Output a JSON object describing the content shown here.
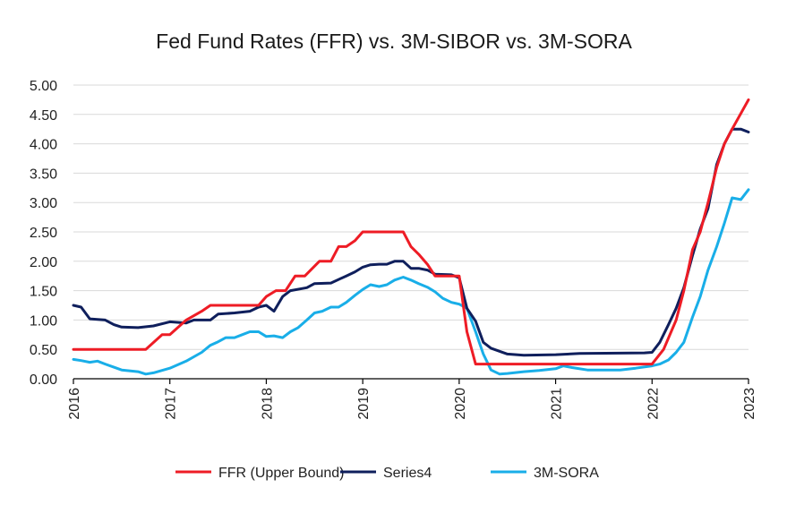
{
  "chart_data": {
    "type": "line",
    "title": "Fed Fund Rates (FFR) vs. 3M-SIBOR vs. 3M-SORA",
    "xlabel": "",
    "ylabel": "",
    "ylim": [
      0,
      5
    ],
    "xlim": [
      2016,
      2023
    ],
    "y_ticks": [
      "0.00",
      "0.50",
      "1.00",
      "1.50",
      "2.00",
      "2.50",
      "3.00",
      "3.50",
      "4.00",
      "4.50",
      "5.00"
    ],
    "x_ticks": [
      "2016",
      "2017",
      "2018",
      "2019",
      "2020",
      "2021",
      "2022",
      "2023"
    ],
    "grid": true,
    "legend": "bottom",
    "series": [
      {
        "name": "FFR (Upper Bound)",
        "color": "#ee1c25",
        "points": [
          [
            2016.0,
            0.5
          ],
          [
            2016.75,
            0.5
          ],
          [
            2016.92,
            0.75
          ],
          [
            2017.0,
            0.75
          ],
          [
            2017.17,
            1.0
          ],
          [
            2017.33,
            1.15
          ],
          [
            2017.42,
            1.25
          ],
          [
            2017.92,
            1.25
          ],
          [
            2018.0,
            1.4
          ],
          [
            2018.1,
            1.5
          ],
          [
            2018.2,
            1.5
          ],
          [
            2018.3,
            1.75
          ],
          [
            2018.4,
            1.75
          ],
          [
            2018.55,
            2.0
          ],
          [
            2018.67,
            2.0
          ],
          [
            2018.75,
            2.25
          ],
          [
            2018.83,
            2.25
          ],
          [
            2018.92,
            2.35
          ],
          [
            2019.0,
            2.5
          ],
          [
            2019.42,
            2.5
          ],
          [
            2019.5,
            2.25
          ],
          [
            2019.58,
            2.12
          ],
          [
            2019.67,
            1.95
          ],
          [
            2019.75,
            1.75
          ],
          [
            2020.0,
            1.75
          ],
          [
            2020.08,
            0.8
          ],
          [
            2020.17,
            0.25
          ],
          [
            2021.0,
            0.25
          ],
          [
            2021.92,
            0.25
          ],
          [
            2022.0,
            0.25
          ],
          [
            2022.12,
            0.5
          ],
          [
            2022.25,
            1.0
          ],
          [
            2022.33,
            1.5
          ],
          [
            2022.42,
            2.2
          ],
          [
            2022.5,
            2.5
          ],
          [
            2022.58,
            3.0
          ],
          [
            2022.67,
            3.6
          ],
          [
            2022.75,
            4.0
          ],
          [
            2022.83,
            4.25
          ],
          [
            2023.0,
            4.75
          ]
        ]
      },
      {
        "name": "Series4",
        "color": "#0f1f5c",
        "points": [
          [
            2016.0,
            1.25
          ],
          [
            2016.08,
            1.22
          ],
          [
            2016.17,
            1.02
          ],
          [
            2016.33,
            1.0
          ],
          [
            2016.42,
            0.92
          ],
          [
            2016.5,
            0.88
          ],
          [
            2016.67,
            0.87
          ],
          [
            2016.83,
            0.9
          ],
          [
            2017.0,
            0.97
          ],
          [
            2017.17,
            0.95
          ],
          [
            2017.25,
            1.0
          ],
          [
            2017.42,
            1.0
          ],
          [
            2017.5,
            1.1
          ],
          [
            2017.67,
            1.12
          ],
          [
            2017.83,
            1.15
          ],
          [
            2017.92,
            1.22
          ],
          [
            2018.0,
            1.25
          ],
          [
            2018.08,
            1.15
          ],
          [
            2018.17,
            1.4
          ],
          [
            2018.25,
            1.5
          ],
          [
            2018.42,
            1.55
          ],
          [
            2018.5,
            1.62
          ],
          [
            2018.67,
            1.63
          ],
          [
            2018.83,
            1.75
          ],
          [
            2018.92,
            1.82
          ],
          [
            2019.0,
            1.9
          ],
          [
            2019.08,
            1.94
          ],
          [
            2019.17,
            1.95
          ],
          [
            2019.25,
            1.95
          ],
          [
            2019.33,
            2.0
          ],
          [
            2019.42,
            2.0
          ],
          [
            2019.5,
            1.88
          ],
          [
            2019.58,
            1.88
          ],
          [
            2019.67,
            1.85
          ],
          [
            2019.75,
            1.78
          ],
          [
            2019.92,
            1.77
          ],
          [
            2020.0,
            1.72
          ],
          [
            2020.08,
            1.2
          ],
          [
            2020.17,
            0.98
          ],
          [
            2020.25,
            0.62
          ],
          [
            2020.33,
            0.52
          ],
          [
            2020.5,
            0.42
          ],
          [
            2020.67,
            0.4
          ],
          [
            2021.0,
            0.41
          ],
          [
            2021.25,
            0.43
          ],
          [
            2021.92,
            0.44
          ],
          [
            2022.0,
            0.45
          ],
          [
            2022.08,
            0.62
          ],
          [
            2022.17,
            0.92
          ],
          [
            2022.25,
            1.2
          ],
          [
            2022.33,
            1.55
          ],
          [
            2022.42,
            2.1
          ],
          [
            2022.5,
            2.55
          ],
          [
            2022.58,
            2.9
          ],
          [
            2022.67,
            3.65
          ],
          [
            2022.75,
            4.0
          ],
          [
            2022.83,
            4.25
          ],
          [
            2022.92,
            4.25
          ],
          [
            2023.0,
            4.2
          ]
        ]
      },
      {
        "name": "3M-SORA",
        "color": "#19aee8",
        "points": [
          [
            2016.0,
            0.33
          ],
          [
            2016.08,
            0.31
          ],
          [
            2016.17,
            0.28
          ],
          [
            2016.25,
            0.3
          ],
          [
            2016.33,
            0.25
          ],
          [
            2016.5,
            0.15
          ],
          [
            2016.67,
            0.12
          ],
          [
            2016.75,
            0.08
          ],
          [
            2016.83,
            0.1
          ],
          [
            2017.0,
            0.18
          ],
          [
            2017.17,
            0.3
          ],
          [
            2017.33,
            0.45
          ],
          [
            2017.42,
            0.57
          ],
          [
            2017.5,
            0.63
          ],
          [
            2017.58,
            0.7
          ],
          [
            2017.67,
            0.7
          ],
          [
            2017.75,
            0.75
          ],
          [
            2017.83,
            0.8
          ],
          [
            2017.92,
            0.8
          ],
          [
            2018.0,
            0.72
          ],
          [
            2018.08,
            0.73
          ],
          [
            2018.17,
            0.7
          ],
          [
            2018.25,
            0.8
          ],
          [
            2018.33,
            0.87
          ],
          [
            2018.42,
            1.0
          ],
          [
            2018.5,
            1.12
          ],
          [
            2018.58,
            1.15
          ],
          [
            2018.67,
            1.22
          ],
          [
            2018.75,
            1.22
          ],
          [
            2018.83,
            1.3
          ],
          [
            2018.92,
            1.42
          ],
          [
            2019.0,
            1.52
          ],
          [
            2019.08,
            1.6
          ],
          [
            2019.17,
            1.57
          ],
          [
            2019.25,
            1.6
          ],
          [
            2019.33,
            1.68
          ],
          [
            2019.42,
            1.73
          ],
          [
            2019.5,
            1.68
          ],
          [
            2019.58,
            1.62
          ],
          [
            2019.67,
            1.56
          ],
          [
            2019.75,
            1.48
          ],
          [
            2019.83,
            1.37
          ],
          [
            2019.92,
            1.3
          ],
          [
            2020.0,
            1.27
          ],
          [
            2020.08,
            1.2
          ],
          [
            2020.17,
            0.8
          ],
          [
            2020.25,
            0.42
          ],
          [
            2020.33,
            0.15
          ],
          [
            2020.42,
            0.08
          ],
          [
            2020.5,
            0.09
          ],
          [
            2020.67,
            0.12
          ],
          [
            2020.83,
            0.14
          ],
          [
            2021.0,
            0.17
          ],
          [
            2021.08,
            0.22
          ],
          [
            2021.17,
            0.19
          ],
          [
            2021.33,
            0.15
          ],
          [
            2021.5,
            0.15
          ],
          [
            2021.67,
            0.15
          ],
          [
            2021.83,
            0.18
          ],
          [
            2022.0,
            0.22
          ],
          [
            2022.08,
            0.25
          ],
          [
            2022.17,
            0.32
          ],
          [
            2022.25,
            0.45
          ],
          [
            2022.33,
            0.62
          ],
          [
            2022.42,
            1.05
          ],
          [
            2022.5,
            1.4
          ],
          [
            2022.58,
            1.85
          ],
          [
            2022.67,
            2.25
          ],
          [
            2022.75,
            2.65
          ],
          [
            2022.83,
            3.08
          ],
          [
            2022.92,
            3.05
          ],
          [
            2023.0,
            3.22
          ]
        ]
      }
    ]
  }
}
